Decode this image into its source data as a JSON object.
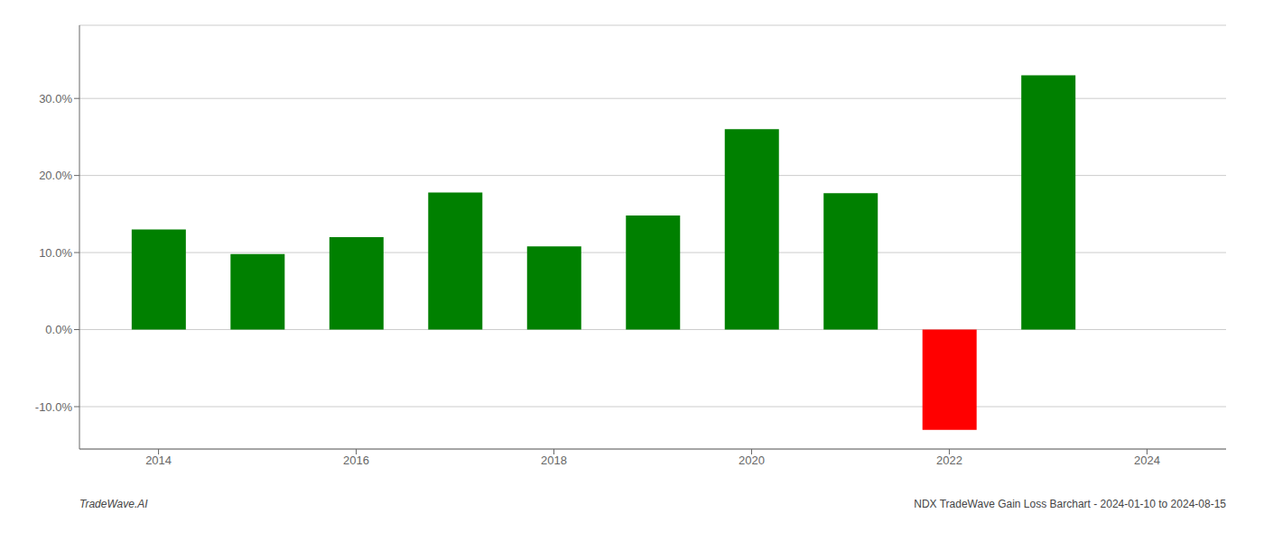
{
  "chart_data": {
    "type": "bar",
    "x": [
      2014,
      2015,
      2016,
      2017,
      2018,
      2019,
      2020,
      2021,
      2022,
      2023
    ],
    "values": [
      0.13,
      0.098,
      0.12,
      0.178,
      0.108,
      0.148,
      0.26,
      0.177,
      -0.13,
      0.33
    ],
    "colors": [
      "#008000",
      "#008000",
      "#008000",
      "#008000",
      "#008000",
      "#008000",
      "#008000",
      "#008000",
      "#ff0000",
      "#008000"
    ],
    "xlim": [
      2013.2,
      2024.8
    ],
    "xticks": [
      2014,
      2016,
      2018,
      2020,
      2022,
      2024
    ],
    "ylim": [
      -0.155,
      0.395
    ],
    "yticks": [
      {
        "value": -0.1,
        "label": "-10.0%"
      },
      {
        "value": 0.0,
        "label": "0.0%"
      },
      {
        "value": 0.1,
        "label": "10.0%"
      },
      {
        "value": 0.2,
        "label": "20.0%"
      },
      {
        "value": 0.3,
        "label": "30.0%"
      }
    ],
    "grid": true,
    "annotations": [
      "TradeWave.AI",
      "NDX TradeWave Gain Loss Barchart - 2024-01-10 to 2024-08-15"
    ]
  }
}
